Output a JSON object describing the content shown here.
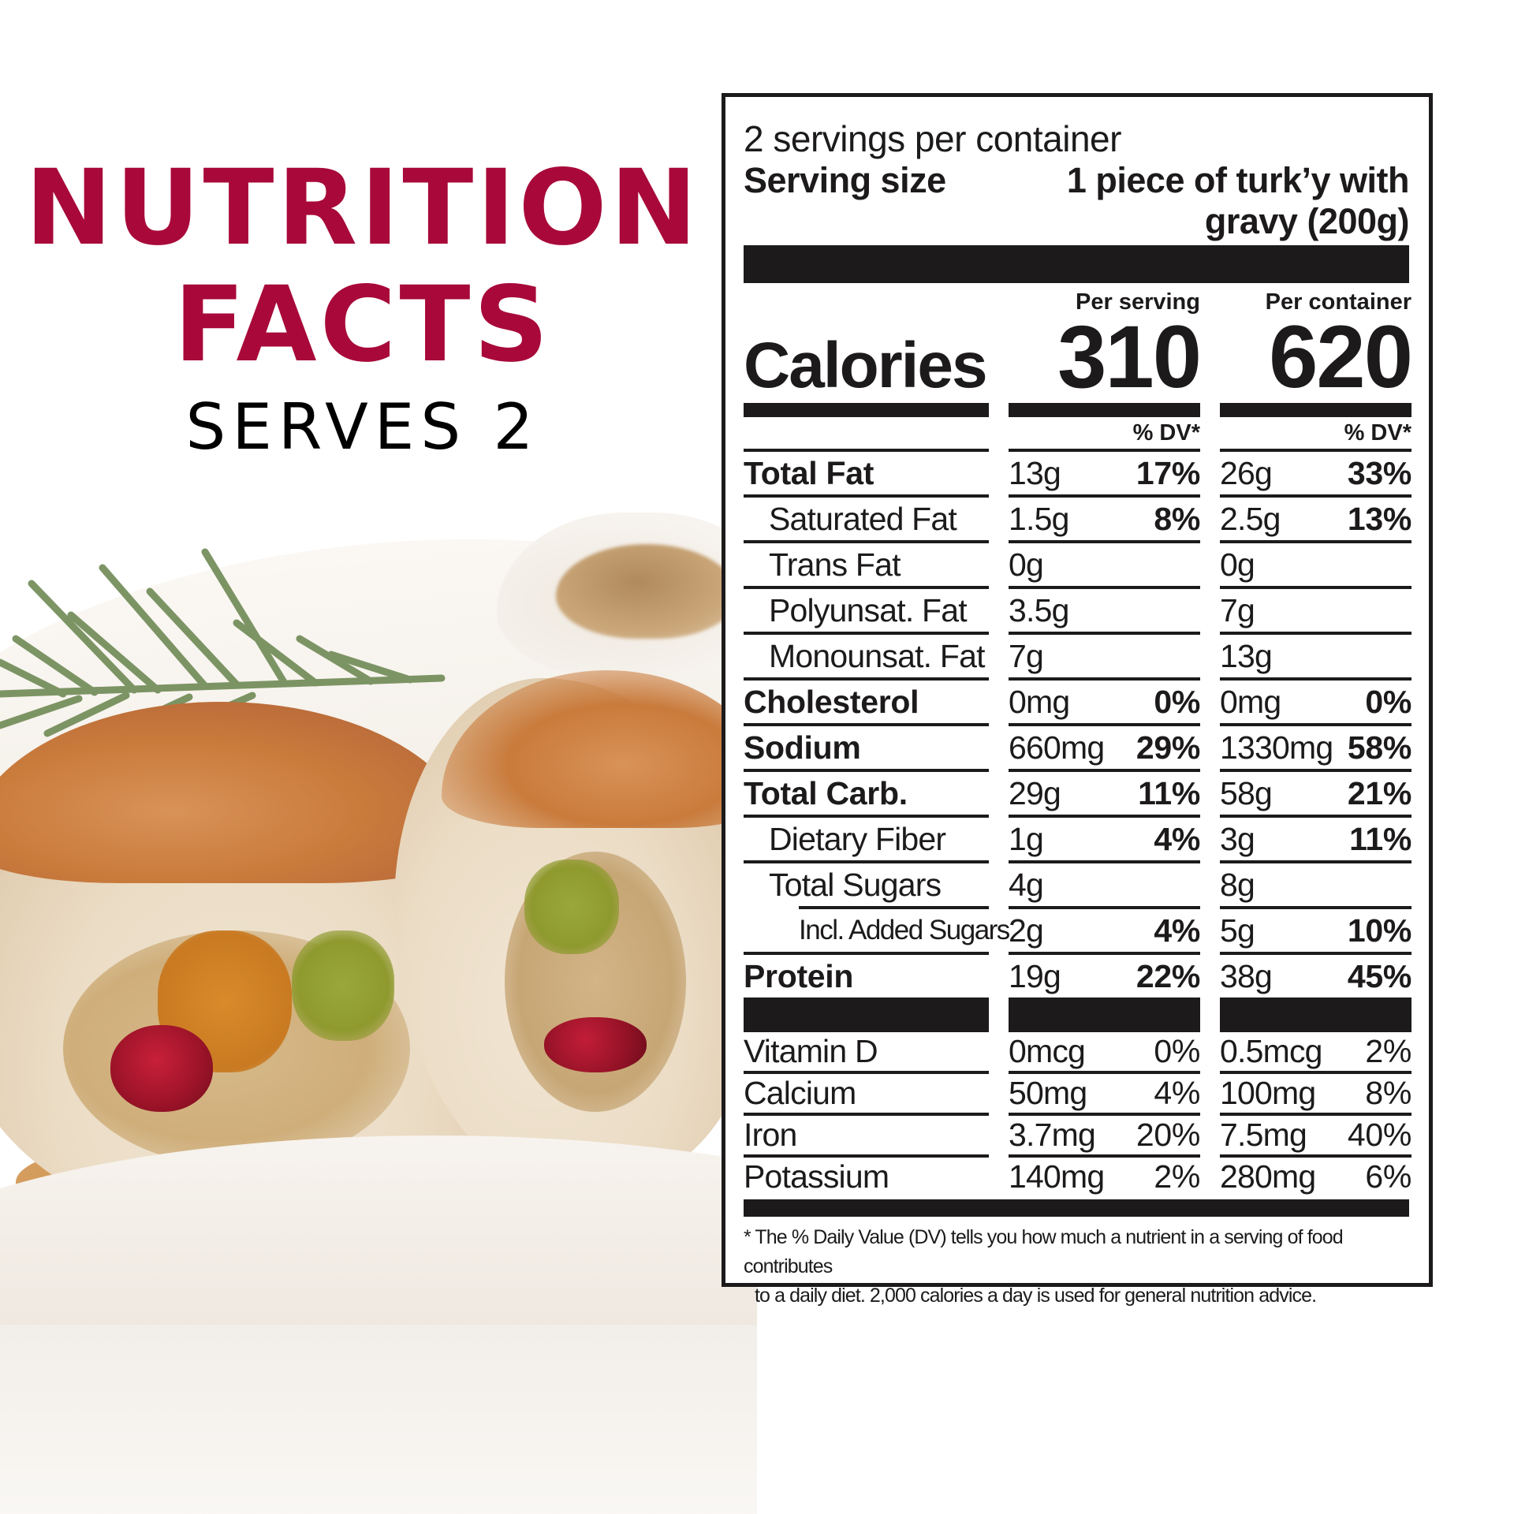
{
  "heading": {
    "title_line1": "NUTRITION",
    "title_line2": "FACTS",
    "subtitle": "SERVES 2",
    "accent_color": "#A8093A"
  },
  "photo": {
    "description": "Stuffed turk'y roast slices with rosemary sprig, gravy boat and gravy on white plate"
  },
  "label": {
    "servings_per_container": "2 servings per container",
    "serving_size_label": "Serving size",
    "serving_size_value_line1": "1 piece of turk’y with",
    "serving_size_value_line2": "gravy (200g)",
    "column_headers": {
      "per_serving": "Per serving",
      "per_container": "Per container"
    },
    "calories_label": "Calories",
    "calories": {
      "per_serving": "310",
      "per_container": "620"
    },
    "dv_header": "% DV*",
    "nutrients": [
      {
        "name": "Total Fat",
        "style": "bold",
        "serving_amount": "13g",
        "serving_dv": "17%",
        "container_amount": "26g",
        "container_dv": "33%"
      },
      {
        "name": "Saturated Fat",
        "style": "indent",
        "serving_amount": "1.5g",
        "serving_dv": "8%",
        "container_amount": "2.5g",
        "container_dv": "13%"
      },
      {
        "name": "Trans Fat",
        "style": "indent",
        "serving_amount": "0g",
        "serving_dv": "",
        "container_amount": "0g",
        "container_dv": ""
      },
      {
        "name": "Polyunsat. Fat",
        "style": "indent",
        "serving_amount": "3.5g",
        "serving_dv": "",
        "container_amount": "7g",
        "container_dv": ""
      },
      {
        "name": "Monounsat. Fat",
        "style": "indent",
        "serving_amount": "7g",
        "serving_dv": "",
        "container_amount": "13g",
        "container_dv": ""
      },
      {
        "name": "Cholesterol",
        "style": "bold",
        "serving_amount": "0mg",
        "serving_dv": "0%",
        "container_amount": "0mg",
        "container_dv": "0%"
      },
      {
        "name": "Sodium",
        "style": "bold",
        "serving_amount": "660mg",
        "serving_dv": "29%",
        "container_amount": "1330mg",
        "container_dv": "58%"
      },
      {
        "name": "Total Carb.",
        "style": "bold",
        "serving_amount": "29g",
        "serving_dv": "11%",
        "container_amount": "58g",
        "container_dv": "21%"
      },
      {
        "name": "Dietary Fiber",
        "style": "indent",
        "serving_amount": "1g",
        "serving_dv": "4%",
        "container_amount": "3g",
        "container_dv": "11%"
      },
      {
        "name": "Total Sugars",
        "style": "indent",
        "serving_amount": "4g",
        "serving_dv": "",
        "container_amount": "8g",
        "container_dv": ""
      },
      {
        "name": "Incl. Added Sugars",
        "style": "indent2",
        "serving_amount": "2g",
        "serving_dv": "4%",
        "container_amount": "5g",
        "container_dv": "10%"
      },
      {
        "name": "Protein",
        "style": "bold",
        "serving_amount": "19g",
        "serving_dv": "22%",
        "container_amount": "38g",
        "container_dv": "45%"
      }
    ],
    "vitamins": [
      {
        "name": "Vitamin D",
        "serving_amount": "0mcg",
        "serving_dv": "0%",
        "container_amount": "0.5mcg",
        "container_dv": "2%"
      },
      {
        "name": "Calcium",
        "serving_amount": "50mg",
        "serving_dv": "4%",
        "container_amount": "100mg",
        "container_dv": "8%"
      },
      {
        "name": "Iron",
        "serving_amount": "3.7mg",
        "serving_dv": "20%",
        "container_amount": "7.5mg",
        "container_dv": "40%"
      },
      {
        "name": "Potassium",
        "serving_amount": "140mg",
        "serving_dv": "2%",
        "container_amount": "280mg",
        "container_dv": "6%"
      }
    ],
    "footnote_line1": "* The % Daily Value (DV) tells you how much a nutrient in a serving of food contributes",
    "footnote_line2": "to a daily diet. 2,000 calories a day is used for general nutrition advice."
  }
}
